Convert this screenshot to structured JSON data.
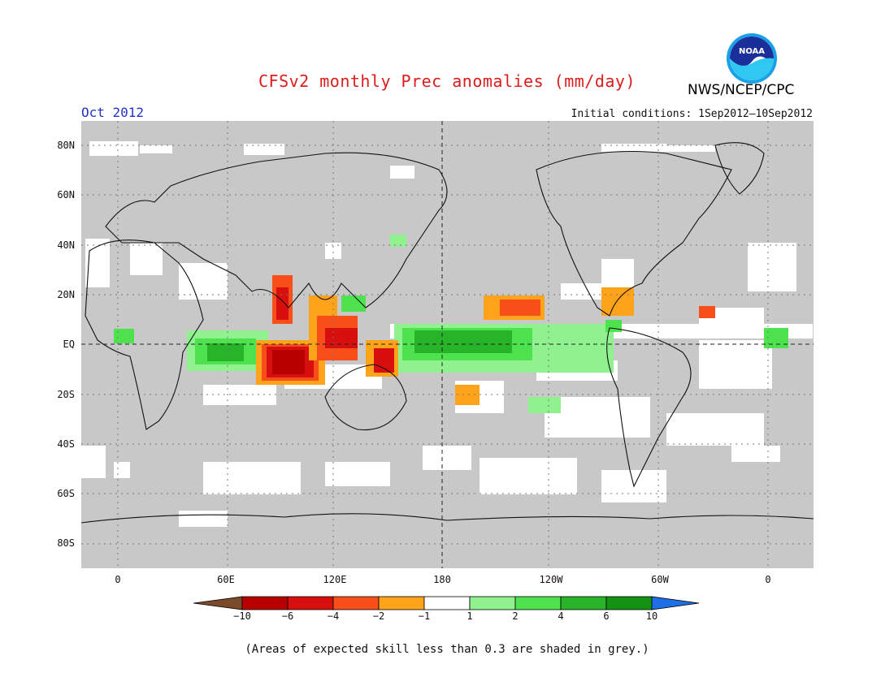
{
  "header": {
    "title": "CFSv2 monthly Prec anomalies (mm/day)",
    "organization": "NWS/NCEP/CPC",
    "logo_text": "NOAA",
    "month": "Oct 2012",
    "initial_conditions": "Initial conditions: 1Sep2012—10Sep2012"
  },
  "axes": {
    "lat_labels": [
      "80N",
      "60N",
      "40N",
      "20N",
      "EQ",
      "20S",
      "40S",
      "60S",
      "80S"
    ],
    "lon_labels": [
      "0",
      "60E",
      "120E",
      "180",
      "120W",
      "60W",
      "0"
    ]
  },
  "legend": {
    "tick_labels": [
      "−10",
      "−6",
      "−4",
      "−2",
      "−1",
      "1",
      "2",
      "4",
      "6",
      "10"
    ],
    "colors": {
      "lt_-10": "#7a4a2a",
      "-10_-6": "#b80000",
      "-6_-4": "#d80f0f",
      "-4_-2": "#f84f1a",
      "-2_-1": "#ffa31a",
      "-1_1": "#ffffff",
      "1_2": "#8ff28f",
      "2_4": "#4ee34e",
      "4_6": "#28b428",
      "6_10": "#139213",
      "gt_10": "#1e6ee6"
    },
    "grey_mask": "#c8c8c8"
  },
  "footnote": "(Areas of expected skill less than 0.3 are shaded in grey.)"
}
